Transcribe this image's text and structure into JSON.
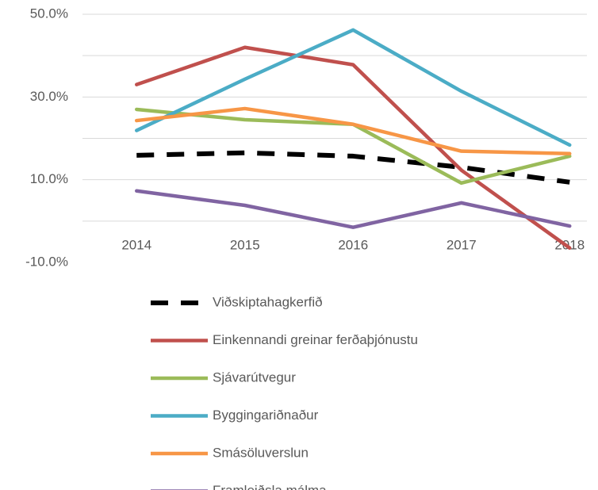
{
  "chart_data": {
    "type": "line",
    "categories": [
      "2014",
      "2015",
      "2016",
      "2017",
      "2018"
    ],
    "series": [
      {
        "name": "Viðskiptahagkerfið",
        "color": "#000000",
        "dash": true,
        "values": [
          15.9,
          16.5,
          15.7,
          13.0,
          9.4
        ]
      },
      {
        "name": "Einkennandi greinar ferðaþjónustu",
        "color": "#c0504d",
        "values": [
          33.0,
          42.0,
          37.8,
          12.3,
          -6.5
        ]
      },
      {
        "name": "Sjávarútvegur",
        "color": "#9bbb59",
        "values": [
          27.0,
          24.5,
          23.4,
          9.2,
          15.7
        ]
      },
      {
        "name": "Byggingariðnaður",
        "color": "#4bacc6",
        "values": [
          21.9,
          34.3,
          46.2,
          31.4,
          18.4
        ]
      },
      {
        "name": "Smásöluverslun",
        "color": "#f79646",
        "values": [
          24.3,
          27.2,
          23.4,
          16.9,
          16.3
        ]
      },
      {
        "name": "Framleiðsla málma",
        "color": "#8064a2",
        "values": [
          7.3,
          3.8,
          -1.5,
          4.4,
          -1.2
        ]
      }
    ],
    "ylim": [
      -10,
      50
    ],
    "yticks": [
      {
        "value": -10,
        "label": "-10.0%"
      },
      {
        "value": 10,
        "label": "10.0%"
      },
      {
        "value": 30,
        "label": "30.0%"
      },
      {
        "value": 50,
        "label": "50.0%"
      }
    ],
    "grid": true,
    "legend": "bottom"
  }
}
